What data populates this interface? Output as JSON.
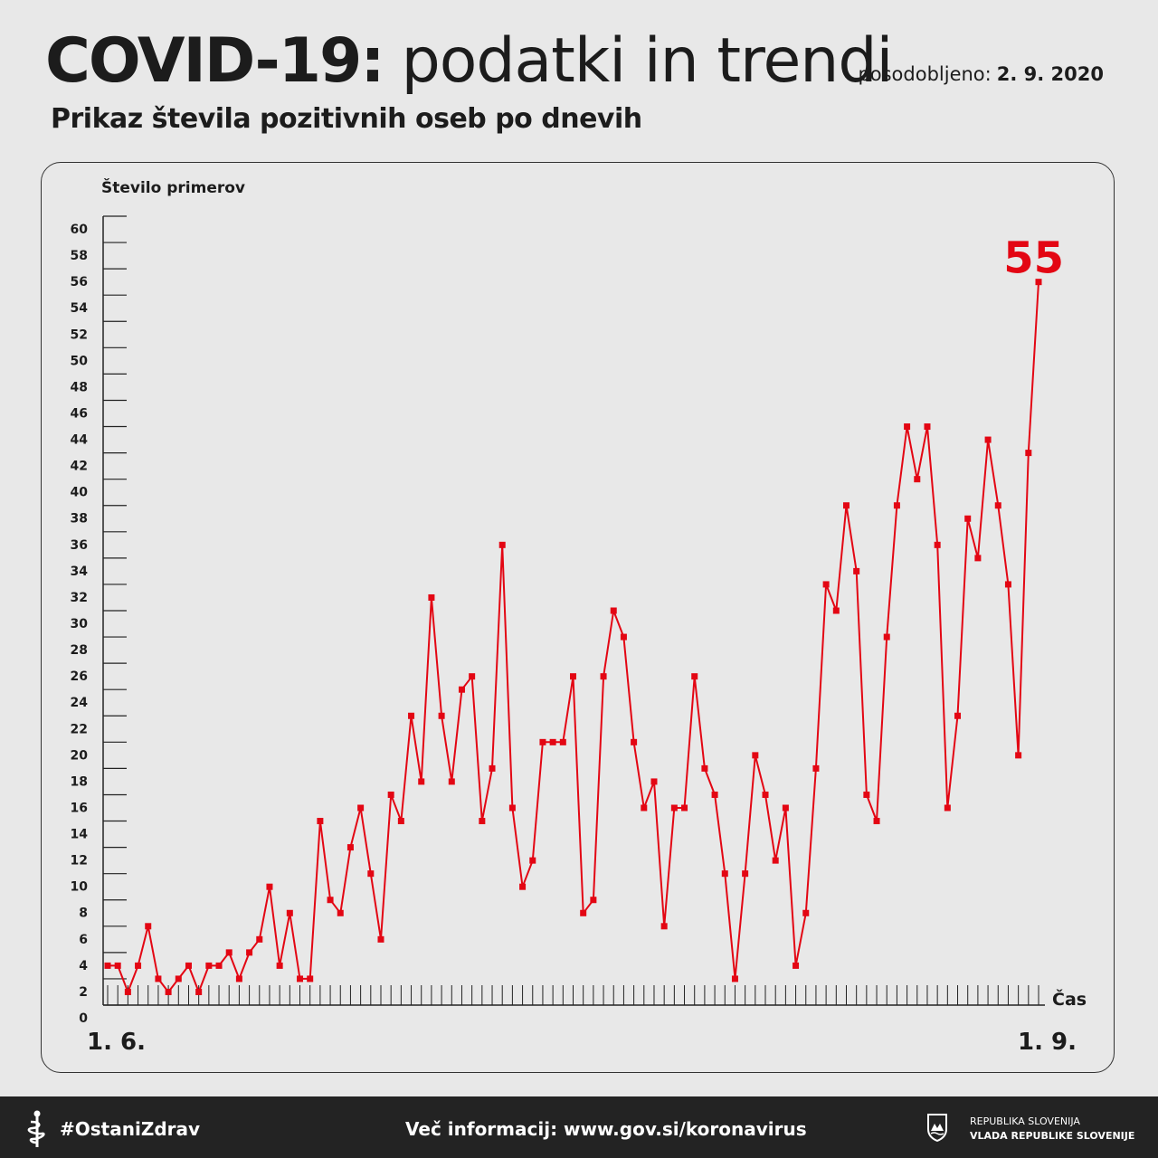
{
  "header": {
    "title_bold": "COVID-19:",
    "title_light": "podatki in trendi",
    "updated_label": "posodobljeno:",
    "updated_date": "2. 9. 2020",
    "subtitle": "Prikaz števila pozitivnih oseb po dnevih"
  },
  "chart_data": {
    "type": "line",
    "title": "Prikaz števila pozitivnih oseb po dnevih",
    "ylabel": "Število primerov",
    "xlabel": "Čas",
    "x_start_label": "1. 6.",
    "x_end_label": "1. 9.",
    "ylim": [
      0,
      60
    ],
    "y_ticks": [
      0,
      2,
      4,
      6,
      8,
      10,
      12,
      14,
      16,
      18,
      20,
      22,
      24,
      26,
      28,
      30,
      32,
      34,
      36,
      38,
      40,
      42,
      44,
      46,
      48,
      50,
      52,
      54,
      56,
      58,
      60
    ],
    "grid": false,
    "highlight_value": "55",
    "line_color": "#e30613",
    "series": [
      {
        "values": [
          3,
          3,
          1,
          3,
          6,
          2,
          1,
          2,
          3,
          1,
          3,
          3,
          4,
          2,
          4,
          5,
          9,
          3,
          7,
          2,
          2,
          14,
          8,
          7,
          12,
          15,
          10,
          5,
          16,
          14,
          22,
          17,
          31,
          22,
          17,
          24,
          25,
          14,
          18,
          35,
          15,
          9,
          11,
          20,
          20,
          20,
          25,
          7,
          8,
          25,
          30,
          28,
          20,
          15,
          17,
          6,
          15,
          15,
          25,
          18,
          16,
          10,
          2,
          10,
          19,
          16,
          11,
          15,
          3,
          7,
          18,
          32,
          30,
          38,
          33,
          16,
          14,
          28,
          38,
          44,
          40,
          44,
          35,
          15,
          22,
          37,
          34,
          43,
          38,
          32,
          19,
          42,
          55
        ]
      }
    ]
  },
  "footer": {
    "hashtag": "#OstaniZdrav",
    "more_info": "Več informacij: www.gov.si/koronavirus",
    "gov_line1": "REPUBLIKA SLOVENIJA",
    "gov_line2": "VLADA REPUBLIKE SLOVENIJE"
  }
}
